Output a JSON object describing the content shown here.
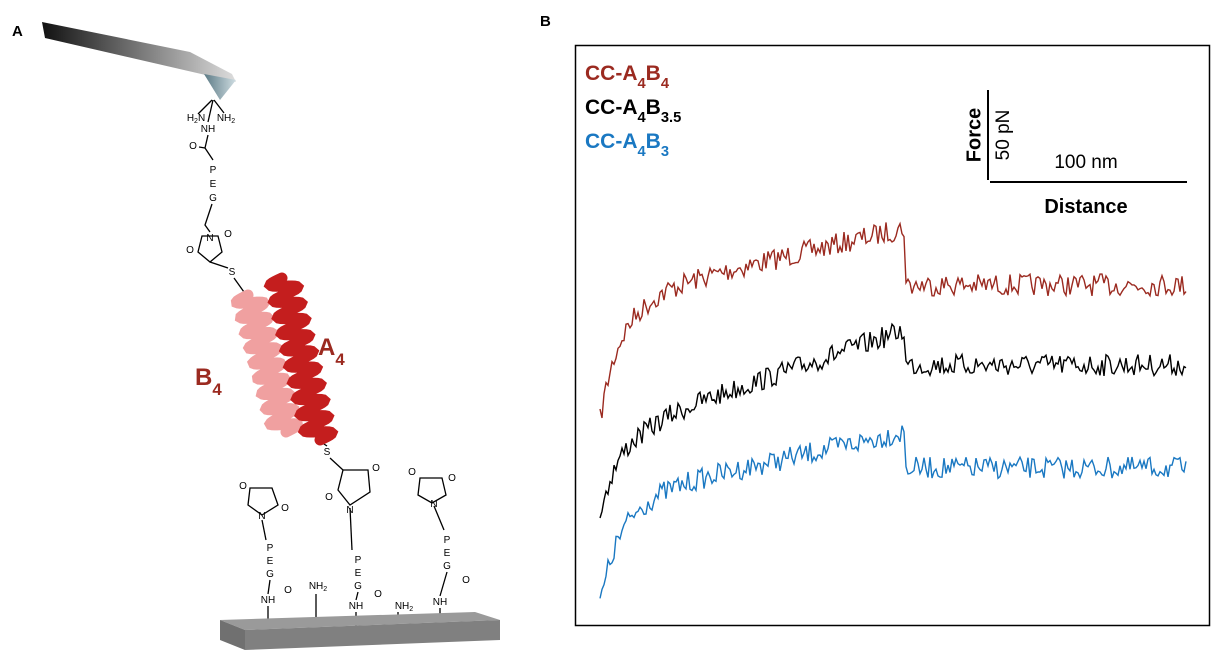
{
  "panel_a": {
    "label": "A",
    "helix_labels": [
      [
        "B",
        "4"
      ],
      [
        "A",
        "4"
      ]
    ],
    "atoms": [
      [
        "H",
        "2",
        "N"
      ],
      [
        "NH",
        "2"
      ],
      [
        "NH"
      ],
      [
        "O"
      ],
      [
        "P"
      ],
      [
        "E"
      ],
      [
        "G"
      ],
      [
        "N"
      ],
      [
        "O"
      ],
      [
        "O"
      ],
      [
        "S"
      ],
      [
        "S"
      ],
      [
        "O"
      ],
      [
        "O"
      ],
      [
        "N"
      ],
      [
        "P"
      ],
      [
        "E"
      ],
      [
        "G"
      ],
      [
        "O"
      ],
      [
        "NH"
      ],
      [
        "O"
      ],
      [
        "O"
      ],
      [
        "N"
      ],
      [
        "P"
      ],
      [
        "E"
      ],
      [
        "G"
      ],
      [
        "O"
      ],
      [
        "NH"
      ],
      [
        "O"
      ],
      [
        "O"
      ],
      [
        "N"
      ],
      [
        "P"
      ],
      [
        "E"
      ],
      [
        "G"
      ],
      [
        "O"
      ],
      [
        "NH"
      ],
      [
        "NH",
        "2"
      ],
      [
        "NH",
        "2"
      ]
    ]
  },
  "panel_b": {
    "label": "B",
    "legend": [
      {
        "name": [
          "CC-A",
          "4",
          "B",
          "4"
        ],
        "color": "#9b2a20"
      },
      {
        "name": [
          "CC-A",
          "4",
          "B",
          "3.5"
        ],
        "color": "#000000"
      },
      {
        "name": [
          "CC-A",
          "4",
          "B",
          "3"
        ],
        "color": "#1a78c2"
      }
    ],
    "scale_bar": {
      "force": "Force",
      "force_value": "50 pN",
      "distance_value": "100 nm",
      "distance": "Distance"
    }
  }
}
